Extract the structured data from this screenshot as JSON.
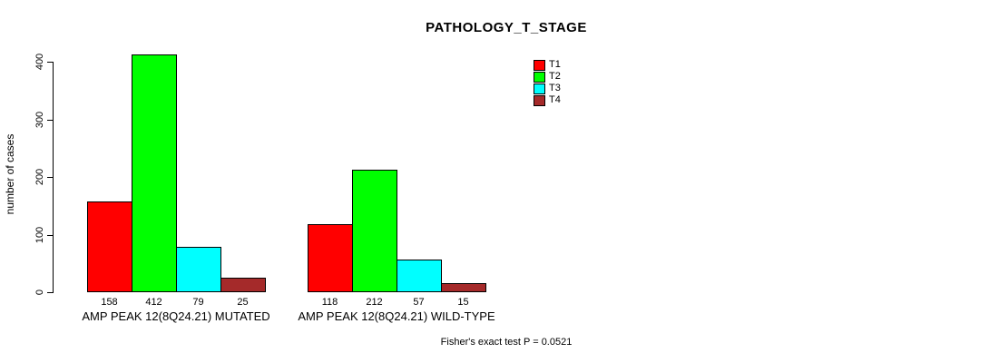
{
  "chart_data": {
    "type": "bar",
    "title": "PATHOLOGY_T_STAGE",
    "ylabel": "number of cases",
    "ylim": [
      0,
      400
    ],
    "yticks": [
      0,
      100,
      200,
      300,
      400
    ],
    "grid": false,
    "legend_position": "top-right",
    "legend": [
      {
        "label": "T1",
        "color": "#FF0000"
      },
      {
        "label": "T2",
        "color": "#00FF00"
      },
      {
        "label": "T3",
        "color": "#00FFFF"
      },
      {
        "label": "T4",
        "color": "#A52A2A"
      }
    ],
    "categories": [
      "T1",
      "T2",
      "T3",
      "T4"
    ],
    "groups": [
      {
        "label": "AMP PEAK 12(8Q24.21) MUTATED",
        "values": [
          158,
          412,
          79,
          25
        ]
      },
      {
        "label": "AMP PEAK 12(8Q24.21) WILD-TYPE",
        "values": [
          118,
          212,
          57,
          15
        ]
      }
    ],
    "footnote": "Fisher's exact test P = 0.0521"
  }
}
